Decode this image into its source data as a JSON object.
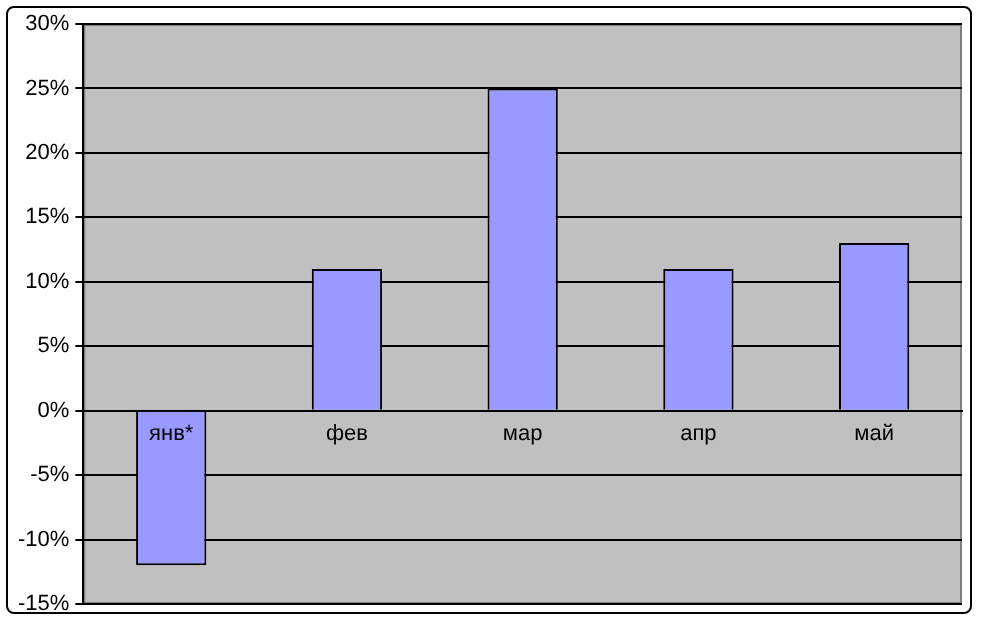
{
  "chart_data": {
    "type": "bar",
    "categories": [
      "янв*",
      "фев",
      "мар",
      "апр",
      "май"
    ],
    "values": [
      -12,
      11,
      25,
      11,
      13
    ],
    "color": "#9999ff",
    "ylim": [
      -15,
      30
    ],
    "yticks": [
      {
        "value": -15,
        "label": "-15%"
      },
      {
        "value": -10,
        "label": "-10%"
      },
      {
        "value": -5,
        "label": "-5%"
      },
      {
        "value": 0,
        "label": "0%"
      },
      {
        "value": 5,
        "label": "5%"
      },
      {
        "value": 10,
        "label": "10%"
      },
      {
        "value": 15,
        "label": "15%"
      },
      {
        "value": 20,
        "label": "20%"
      },
      {
        "value": 25,
        "label": "25%"
      },
      {
        "value": 30,
        "label": "30%"
      }
    ],
    "grid": "y"
  }
}
